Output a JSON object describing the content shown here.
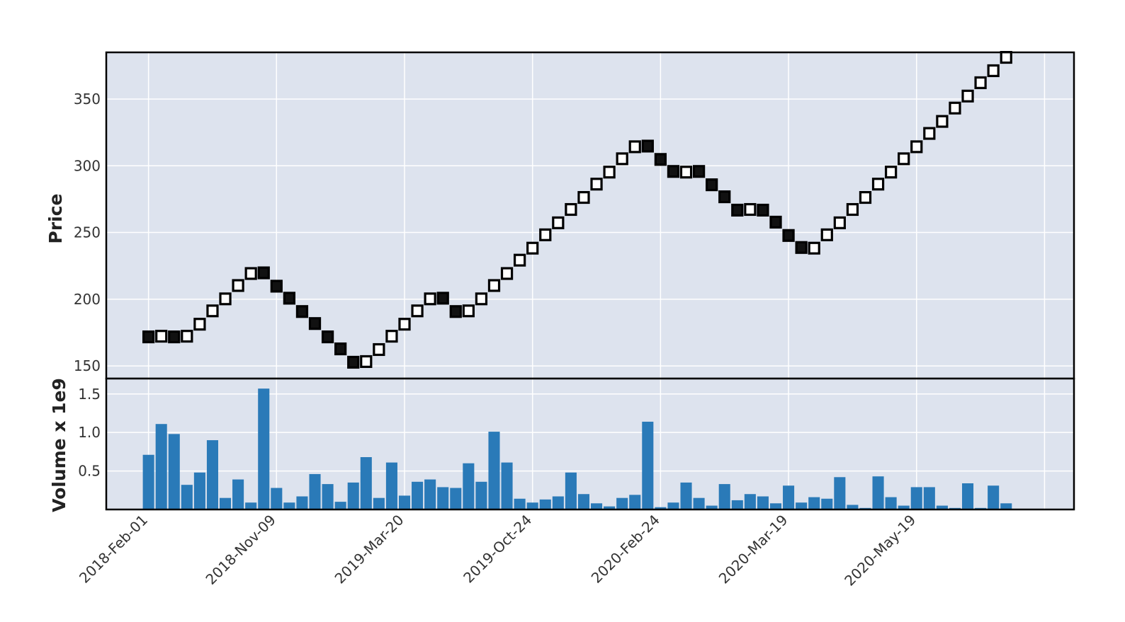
{
  "chart_data": {
    "type": "renko",
    "colors": {
      "background": "#dde3ee",
      "grid": "#ffffff",
      "up_fill": "#ffffff",
      "down_fill": "#111111",
      "brick_edge": "#000000",
      "volume_bar": "#2a7ab8",
      "frame": "#000000"
    },
    "brick_size": 9.5,
    "price_panel": {
      "ylabel": "Price",
      "ylim": [
        140.5,
        385
      ],
      "yticks": [
        150,
        200,
        250,
        300,
        350
      ]
    },
    "volume_panel": {
      "ylabel": "Volume x 1e9",
      "ylim": [
        0,
        1.7
      ],
      "yticks": [
        0.5,
        1.0,
        1.5
      ],
      "tick_labels": [
        "0.5",
        "1.0",
        "1.5"
      ]
    },
    "x": {
      "xlim": [
        -3.3,
        72.3
      ],
      "tick_positions": [
        0,
        10,
        20,
        30,
        40,
        50,
        60,
        70
      ],
      "tick_labels": [
        "2018-Feb-01",
        "2018-Nov-09",
        "2019-Mar-20",
        "2019-Oct-24",
        "2020-Feb-24",
        "2020-Mar-19",
        "2020-May-19",
        ""
      ]
    },
    "bricks": {
      "close": [
        167,
        177,
        167,
        177,
        186,
        196,
        205,
        215,
        224,
        215,
        205,
        196,
        186,
        177,
        167,
        158,
        148,
        158,
        167,
        177,
        186,
        196,
        205,
        196,
        186,
        196,
        205,
        215,
        224,
        234,
        243,
        253,
        262,
        272,
        281,
        291,
        300,
        310,
        319,
        310,
        300,
        291,
        300,
        291,
        281,
        272,
        262,
        272,
        262,
        253,
        243,
        234,
        243,
        253,
        262,
        272,
        281,
        291,
        300,
        310,
        319,
        329,
        338,
        348,
        357,
        367,
        376,
        386
      ],
      "direction": [
        "down",
        "up",
        "down",
        "up",
        "up",
        "up",
        "up",
        "up",
        "up",
        "down",
        "down",
        "down",
        "down",
        "down",
        "down",
        "down",
        "down",
        "up",
        "up",
        "up",
        "up",
        "up",
        "up",
        "down",
        "down",
        "up",
        "up",
        "up",
        "up",
        "up",
        "up",
        "up",
        "up",
        "up",
        "up",
        "up",
        "up",
        "up",
        "up",
        "down",
        "down",
        "down",
        "up",
        "down",
        "down",
        "down",
        "down",
        "up",
        "down",
        "down",
        "down",
        "down",
        "up",
        "up",
        "up",
        "up",
        "up",
        "up",
        "up",
        "up",
        "up",
        "up",
        "up",
        "up",
        "up",
        "up",
        "up",
        "up"
      ]
    },
    "volume": [
      0.71,
      1.11,
      0.98,
      0.32,
      0.48,
      0.9,
      0.15,
      0.39,
      0.09,
      1.57,
      0.28,
      0.09,
      0.17,
      0.46,
      0.33,
      0.1,
      0.35,
      0.68,
      0.15,
      0.61,
      0.18,
      0.36,
      0.39,
      0.29,
      0.28,
      0.6,
      0.36,
      1.01,
      0.61,
      0.14,
      0.09,
      0.13,
      0.17,
      0.48,
      0.2,
      0.08,
      0.04,
      0.15,
      0.19,
      1.14,
      0.03,
      0.09,
      0.35,
      0.15,
      0.05,
      0.33,
      0.12,
      0.2,
      0.17,
      0.08,
      0.31,
      0.09,
      0.16,
      0.14,
      0.42,
      0.06,
      0.02,
      0.43,
      0.16,
      0.05,
      0.29,
      0.29,
      0.05,
      0.02,
      0.34,
      0.02,
      0.31,
      0.08
    ]
  }
}
